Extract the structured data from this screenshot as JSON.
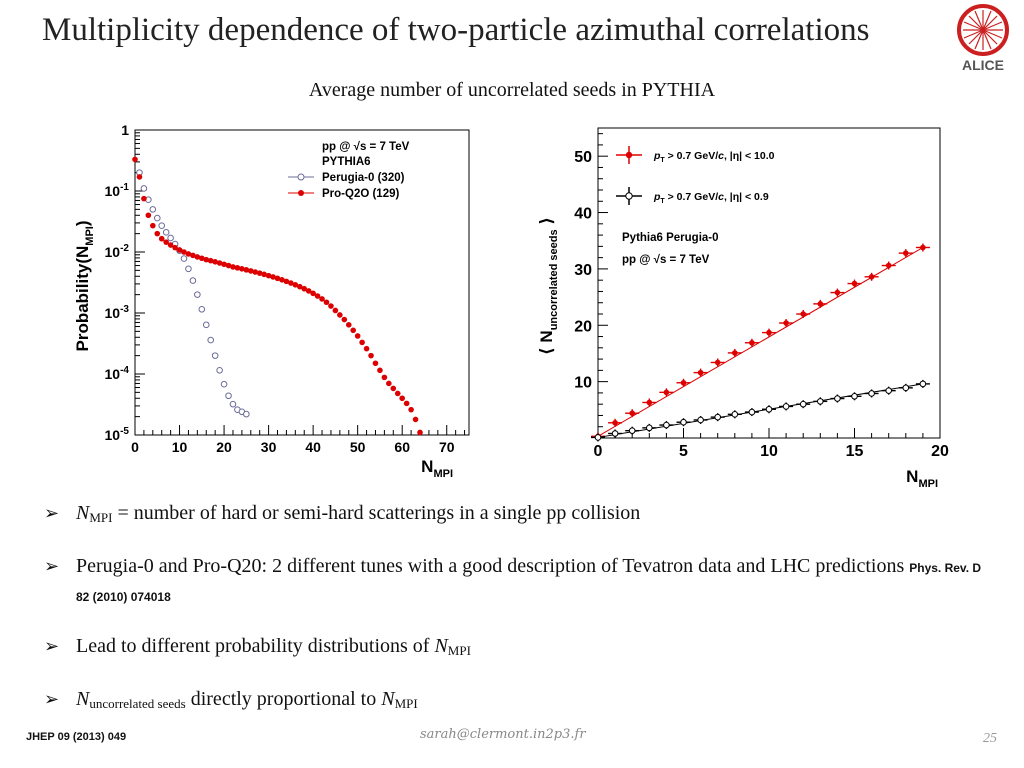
{
  "slide": {
    "title": "Multiplicity dependence of two-particle azimuthal correlations",
    "subtitle": "Average number of uncorrelated seeds in PYTHIA",
    "logo_text": "ALICE",
    "footer_ref": "JHEP 09 (2013) 049",
    "footer_email": "sarah@clermont.in2p3.fr",
    "page_number": "25"
  },
  "bullets": [
    {
      "symbol": "N",
      "sub": "MPI",
      "text": " = number of hard or semi-hard scatterings in a single pp collision"
    },
    {
      "text": "Perugia-0 and Pro-Q20: 2 different tunes with a good description of Tevatron data and LHC predictions ",
      "ref": "Phys. Rev. D 82 (2010) 074018"
    },
    {
      "text": "Lead to different probability distributions of ",
      "symbol": "N",
      "sub": "MPI"
    },
    {
      "symbol": "N",
      "sub": "uncorrelated seeds",
      "text": " directly proportional to ",
      "symbol2": "N",
      "sub2": "MPI"
    }
  ],
  "chart_data": [
    {
      "type": "scatter",
      "ylabel": "Probability(N_MPI)",
      "xlabel": "N_MPI",
      "xlim": [
        0,
        75
      ],
      "ylim": [
        1e-05,
        1
      ],
      "yscale": "log",
      "x_ticks": [
        "0",
        "10",
        "20",
        "30",
        "40",
        "50",
        "60",
        "70"
      ],
      "y_ticks": [
        "1",
        "10^-1",
        "10^-2",
        "10^-3",
        "10^-4",
        "10^-5"
      ],
      "legend": {
        "position": "top-right",
        "header": [
          "pp @ √s = 7 TeV",
          "PYTHIA6"
        ]
      },
      "series": [
        {
          "name": "Perugia-0 (320)",
          "marker": "open-circle",
          "color": "#6b6b9a",
          "x": [
            1,
            2,
            3,
            4,
            5,
            6,
            7,
            8,
            9,
            10,
            11,
            12,
            13,
            14,
            15,
            16,
            17,
            18,
            19,
            20,
            21,
            22,
            23,
            24,
            25
          ],
          "y": [
            0.2,
            0.11,
            0.072,
            0.05,
            0.036,
            0.027,
            0.021,
            0.017,
            0.0135,
            0.0105,
            0.0078,
            0.0053,
            0.0034,
            0.002,
            0.00115,
            0.00064,
            0.00036,
            0.0002,
            0.000115,
            6.8e-05,
            4.4e-05,
            3.2e-05,
            2.6e-05,
            2.4e-05,
            2.2e-05
          ]
        },
        {
          "name": "Pro-Q2O (129)",
          "marker": "filled-circle",
          "color": "#dd0000",
          "x": [
            0,
            1,
            2,
            3,
            4,
            5,
            6,
            7,
            8,
            9,
            10,
            11,
            12,
            13,
            14,
            15,
            16,
            17,
            18,
            19,
            20,
            21,
            22,
            23,
            24,
            25,
            26,
            27,
            28,
            29,
            30,
            31,
            32,
            33,
            34,
            35,
            36,
            37,
            38,
            39,
            40,
            41,
            42,
            43,
            44,
            45,
            46,
            47,
            48,
            49,
            50,
            51,
            52,
            53,
            54,
            55,
            56,
            57,
            58,
            59,
            60,
            61,
            62,
            63,
            64
          ],
          "y": [
            0.33,
            0.17,
            0.075,
            0.04,
            0.027,
            0.02,
            0.0165,
            0.0145,
            0.013,
            0.0118,
            0.0108,
            0.01,
            0.0093,
            0.0088,
            0.0083,
            0.0079,
            0.0075,
            0.0072,
            0.0069,
            0.0066,
            0.0063,
            0.006,
            0.0057,
            0.0055,
            0.0053,
            0.0051,
            0.0049,
            0.0047,
            0.0045,
            0.0043,
            0.0041,
            0.0039,
            0.0037,
            0.0035,
            0.0033,
            0.0031,
            0.0029,
            0.0027,
            0.0025,
            0.0023,
            0.0021,
            0.0019,
            0.0017,
            0.0015,
            0.0013,
            0.0011,
            0.00093,
            0.00078,
            0.00064,
            0.00052,
            0.00042,
            0.00033,
            0.00026,
            0.0002,
            0.00015,
            0.000115,
            8.8e-05,
            7e-05,
            5.8e-05,
            4.8e-05,
            4e-05,
            3.3e-05,
            2.6e-05,
            1.8e-05,
            1.1e-05
          ]
        }
      ]
    },
    {
      "type": "scatter",
      "ylabel": "⟨N_uncorrelated seeds⟩",
      "xlabel": "N_MPI",
      "xlim": [
        0,
        20
      ],
      "ylim": [
        0,
        55
      ],
      "x_ticks": [
        "0",
        "5",
        "10",
        "15",
        "20"
      ],
      "y_ticks": [
        "10",
        "20",
        "30",
        "40",
        "50"
      ],
      "legend": {
        "position": "top-left"
      },
      "annotation": [
        "Pythia6 Perugia-0",
        "pp @ √s = 7 TeV"
      ],
      "series": [
        {
          "name": "p_T > 0.7 GeV/c, |η| < 10.0",
          "marker": "filled-circle",
          "color": "#dd0000",
          "x": [
            0,
            1,
            2,
            3,
            4,
            5,
            6,
            7,
            8,
            9,
            10,
            11,
            12,
            13,
            14,
            15,
            16,
            17,
            18,
            19
          ],
          "y": [
            0.3,
            2.7,
            4.4,
            6.3,
            8.1,
            9.8,
            11.6,
            13.4,
            15.1,
            16.9,
            18.7,
            20.4,
            22.0,
            23.8,
            25.8,
            27.4,
            28.6,
            30.6,
            32.8,
            33.8
          ]
        },
        {
          "name": "p_T > 0.7 GeV/c, |η| < 0.9",
          "marker": "open-circle",
          "color": "#000000",
          "x": [
            0,
            1,
            2,
            3,
            4,
            5,
            6,
            7,
            8,
            9,
            10,
            11,
            12,
            13,
            14,
            15,
            16,
            17,
            18,
            19
          ],
          "y": [
            0.1,
            0.8,
            1.3,
            1.8,
            2.3,
            2.8,
            3.2,
            3.7,
            4.2,
            4.6,
            5.1,
            5.6,
            6.0,
            6.5,
            7.0,
            7.4,
            7.9,
            8.4,
            8.9,
            9.6
          ]
        }
      ]
    }
  ]
}
